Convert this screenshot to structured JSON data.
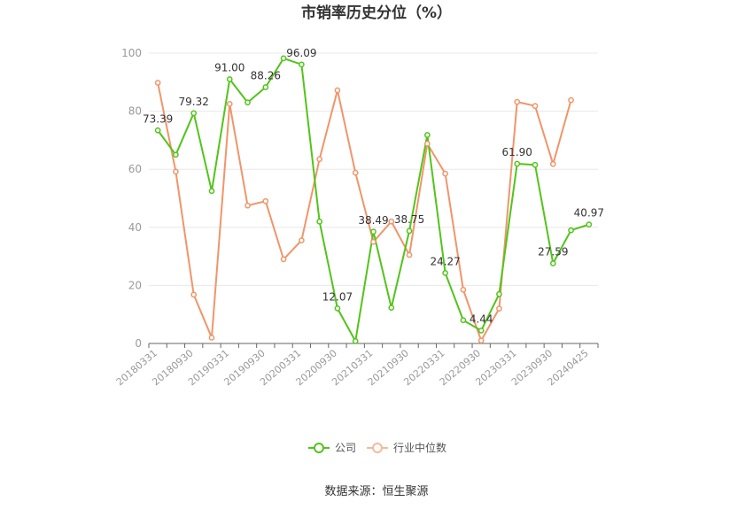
{
  "chart_data": {
    "type": "line",
    "title": "市销率历史分位（%）",
    "ylim": [
      0,
      100
    ],
    "yticks": [
      0,
      20,
      40,
      60,
      80,
      100
    ],
    "x": [
      "20180331",
      "20180630",
      "20180930",
      "20181231",
      "20190331",
      "20190630",
      "20190930",
      "20191231",
      "20200331",
      "20200630",
      "20200930",
      "20201231",
      "20210331",
      "20210630",
      "20210930",
      "20211231",
      "20220331",
      "20220630",
      "20220930",
      "20221231",
      "20230331",
      "20230630",
      "20230930",
      "20231231",
      "20240425"
    ],
    "xtick_labels": [
      "20180331",
      "20180930",
      "20190331",
      "20190930",
      "20200331",
      "20200930",
      "20210331",
      "20210930",
      "20220331",
      "20220930",
      "20230331",
      "20230930",
      "20240425"
    ],
    "series": [
      {
        "name": "公司",
        "color": "#52c41a",
        "values": [
          73.39,
          65.0,
          79.32,
          52.5,
          91.0,
          83.0,
          88.26,
          98.2,
          96.09,
          42.0,
          12.07,
          0.8,
          38.49,
          12.3,
          38.75,
          71.8,
          24.27,
          8.0,
          4.44,
          17.0,
          61.9,
          61.5,
          27.59,
          39.0,
          40.97
        ]
      },
      {
        "name": "行业中位数",
        "color": "#f28e5e",
        "values": [
          89.8,
          59.2,
          16.8,
          2.0,
          82.5,
          47.5,
          49.0,
          29.0,
          35.5,
          63.5,
          87.2,
          58.8,
          35.0,
          42.0,
          30.5,
          68.8,
          58.5,
          18.5,
          1.0,
          12.0,
          83.2,
          81.8,
          61.8,
          83.8,
          null
        ]
      }
    ],
    "data_labels": [
      {
        "series": 0,
        "index": 0,
        "text": "73.39"
      },
      {
        "series": 0,
        "index": 2,
        "text": "79.32"
      },
      {
        "series": 0,
        "index": 4,
        "text": "91.00"
      },
      {
        "series": 0,
        "index": 6,
        "text": "88.26"
      },
      {
        "series": 0,
        "index": 8,
        "text": "96.09"
      },
      {
        "series": 0,
        "index": 10,
        "text": "12.07"
      },
      {
        "series": 0,
        "index": 12,
        "text": "38.49"
      },
      {
        "series": 0,
        "index": 14,
        "text": "38.75"
      },
      {
        "series": 0,
        "index": 16,
        "text": "24.27"
      },
      {
        "series": 0,
        "index": 18,
        "text": "4.44"
      },
      {
        "series": 0,
        "index": 20,
        "text": "61.90"
      },
      {
        "series": 0,
        "index": 22,
        "text": "27.59"
      },
      {
        "series": 0,
        "index": 24,
        "text": "40.97"
      }
    ],
    "legend": {
      "position": "bottom",
      "items": [
        "公司",
        "行业中位数"
      ]
    },
    "grid": true
  },
  "source": "数据来源：恒生聚源"
}
